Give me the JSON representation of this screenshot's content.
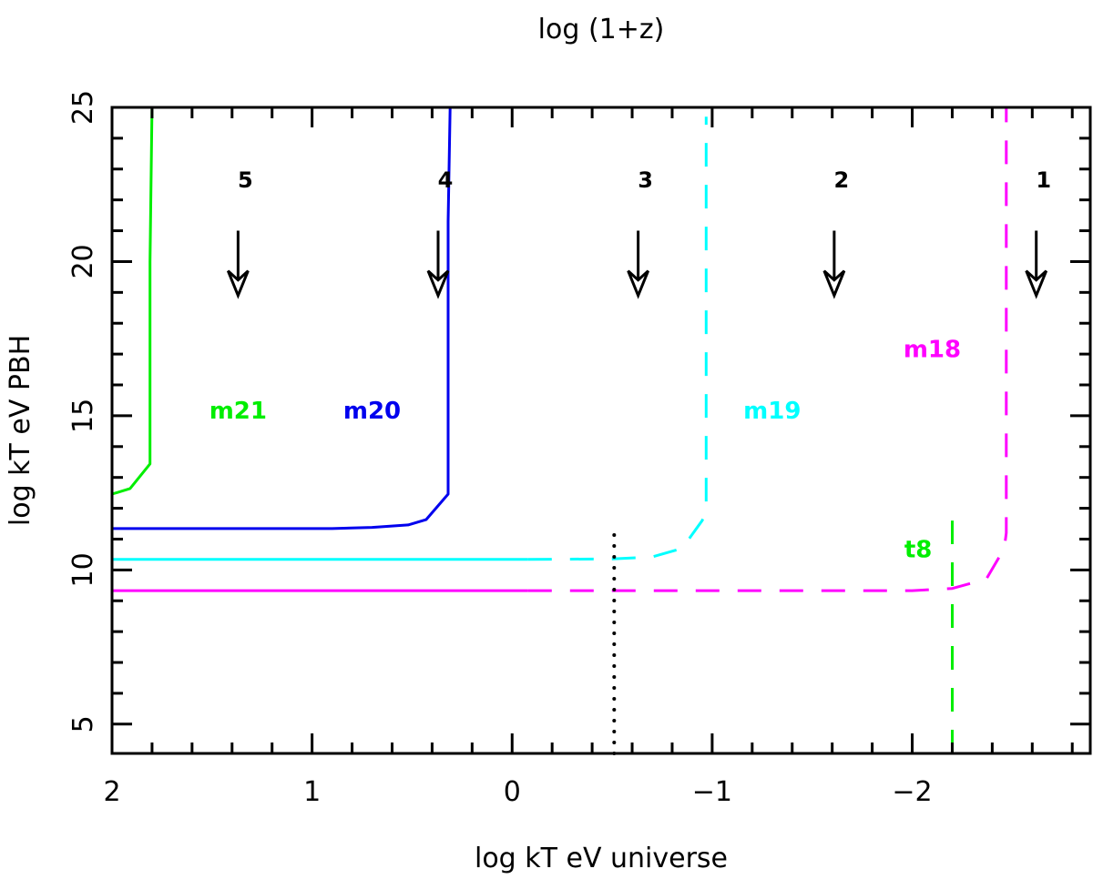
{
  "chart_data": {
    "type": "line",
    "title": "",
    "top_axis_label": "log (1+z)",
    "xlabel": "log kT eV universe",
    "ylabel": "log kT eV PBH",
    "xlim": [
      2,
      -2.89
    ],
    "ylim": [
      4.05,
      25
    ],
    "x_ticks": [
      2,
      1,
      0,
      -1,
      -2
    ],
    "x_tick_labels": [
      "2",
      "1",
      "0",
      "−1",
      "−2"
    ],
    "y_ticks": [
      5,
      10,
      15,
      20,
      25
    ],
    "y_tick_labels": [
      "5",
      "10",
      "15",
      "20",
      "25"
    ],
    "grid": false,
    "series": [
      {
        "name": "m21",
        "color": "#00ee00",
        "segments": [
          {
            "style": "solid",
            "points": [
              [
                2,
                12.46
              ],
              [
                1.91,
                12.64
              ],
              [
                1.81,
                13.44
              ],
              [
                1.81,
                20
              ],
              [
                1.8,
                25
              ]
            ]
          }
        ],
        "label_pos": [
          1.37,
          15.2
        ]
      },
      {
        "name": "m20",
        "color": "#0000ee",
        "segments": [
          {
            "style": "solid",
            "points": [
              [
                2,
                11.34
              ],
              [
                0.9,
                11.34
              ],
              [
                0.7,
                11.38
              ],
              [
                0.52,
                11.46
              ],
              [
                0.43,
                11.63
              ],
              [
                0.32,
                12.46
              ],
              [
                0.32,
                21.3
              ],
              [
                0.31,
                25
              ]
            ]
          }
        ],
        "label_pos": [
          0.7,
          15.2
        ]
      },
      {
        "name": "m19",
        "color": "#00ffff",
        "segments": [
          {
            "style": "solid",
            "points": [
              [
                2,
                10.34
              ],
              [
                -0.08,
                10.34
              ]
            ]
          },
          {
            "style": "dashed",
            "points": [
              [
                -0.08,
                10.34
              ],
              [
                -0.5,
                10.36
              ],
              [
                -0.7,
                10.42
              ],
              [
                -0.85,
                10.7
              ],
              [
                -0.95,
                11.6
              ],
              [
                -0.97,
                11.9
              ],
              [
                -0.97,
                24.7
              ]
            ]
          }
        ],
        "label_pos": [
          -1.3,
          15.2
        ]
      },
      {
        "name": "m18",
        "color": "#ff00ff",
        "segments": [
          {
            "style": "solid",
            "points": [
              [
                2,
                9.33
              ],
              [
                -0.08,
                9.33
              ]
            ]
          },
          {
            "style": "dashed",
            "points": [
              [
                -0.08,
                9.33
              ],
              [
                -2.0,
                9.33
              ],
              [
                -2.2,
                9.4
              ],
              [
                -2.37,
                9.7
              ],
              [
                -2.46,
                10.7
              ],
              [
                -2.47,
                11.2
              ],
              [
                -2.47,
                25
              ]
            ]
          }
        ],
        "label_pos": [
          -2.1,
          17.2
        ]
      },
      {
        "name": "t8",
        "color": "#00ee00",
        "segments": [
          {
            "style": "dashed",
            "points": [
              [
                -2.2,
                4.05
              ],
              [
                -2.2,
                11.6
              ]
            ]
          }
        ],
        "label_pos": [
          -2.03,
          10.7
        ]
      },
      {
        "name": "",
        "color": "#000000",
        "segments": [
          {
            "style": "dotted",
            "points": [
              [
                -0.51,
                4.05
              ],
              [
                -0.51,
                11.4
              ]
            ]
          }
        ]
      }
    ],
    "redshift_markers": [
      {
        "label": "5",
        "x": 1.37
      },
      {
        "label": "4",
        "x": 0.37
      },
      {
        "label": "3",
        "x": -0.63
      },
      {
        "label": "2",
        "x": -1.61
      },
      {
        "label": "1",
        "x": -2.62
      }
    ],
    "marker_y_range": [
      21,
      18.9
    ],
    "marker_label_y": 22.7
  }
}
